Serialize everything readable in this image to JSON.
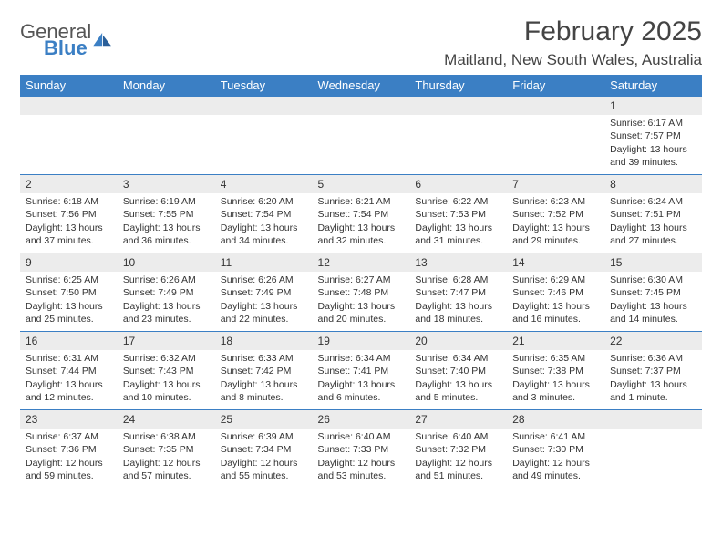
{
  "brand": {
    "word1": "General",
    "word2": "Blue"
  },
  "title": "February 2025",
  "location": "Maitland, New South Wales, Australia",
  "weekdays": [
    "Sunday",
    "Monday",
    "Tuesday",
    "Wednesday",
    "Thursday",
    "Friday",
    "Saturday"
  ],
  "colors": {
    "header_bg": "#3b7fc4",
    "header_fg": "#ffffff",
    "daynum_bg": "#ececec",
    "border": "#3b7fc4",
    "text": "#333333"
  },
  "weeks": [
    [
      {
        "blank": true
      },
      {
        "blank": true
      },
      {
        "blank": true
      },
      {
        "blank": true
      },
      {
        "blank": true
      },
      {
        "blank": true
      },
      {
        "day": "1",
        "sunrise": "Sunrise: 6:17 AM",
        "sunset": "Sunset: 7:57 PM",
        "daylight1": "Daylight: 13 hours",
        "daylight2": "and 39 minutes."
      }
    ],
    [
      {
        "day": "2",
        "sunrise": "Sunrise: 6:18 AM",
        "sunset": "Sunset: 7:56 PM",
        "daylight1": "Daylight: 13 hours",
        "daylight2": "and 37 minutes."
      },
      {
        "day": "3",
        "sunrise": "Sunrise: 6:19 AM",
        "sunset": "Sunset: 7:55 PM",
        "daylight1": "Daylight: 13 hours",
        "daylight2": "and 36 minutes."
      },
      {
        "day": "4",
        "sunrise": "Sunrise: 6:20 AM",
        "sunset": "Sunset: 7:54 PM",
        "daylight1": "Daylight: 13 hours",
        "daylight2": "and 34 minutes."
      },
      {
        "day": "5",
        "sunrise": "Sunrise: 6:21 AM",
        "sunset": "Sunset: 7:54 PM",
        "daylight1": "Daylight: 13 hours",
        "daylight2": "and 32 minutes."
      },
      {
        "day": "6",
        "sunrise": "Sunrise: 6:22 AM",
        "sunset": "Sunset: 7:53 PM",
        "daylight1": "Daylight: 13 hours",
        "daylight2": "and 31 minutes."
      },
      {
        "day": "7",
        "sunrise": "Sunrise: 6:23 AM",
        "sunset": "Sunset: 7:52 PM",
        "daylight1": "Daylight: 13 hours",
        "daylight2": "and 29 minutes."
      },
      {
        "day": "8",
        "sunrise": "Sunrise: 6:24 AM",
        "sunset": "Sunset: 7:51 PM",
        "daylight1": "Daylight: 13 hours",
        "daylight2": "and 27 minutes."
      }
    ],
    [
      {
        "day": "9",
        "sunrise": "Sunrise: 6:25 AM",
        "sunset": "Sunset: 7:50 PM",
        "daylight1": "Daylight: 13 hours",
        "daylight2": "and 25 minutes."
      },
      {
        "day": "10",
        "sunrise": "Sunrise: 6:26 AM",
        "sunset": "Sunset: 7:49 PM",
        "daylight1": "Daylight: 13 hours",
        "daylight2": "and 23 minutes."
      },
      {
        "day": "11",
        "sunrise": "Sunrise: 6:26 AM",
        "sunset": "Sunset: 7:49 PM",
        "daylight1": "Daylight: 13 hours",
        "daylight2": "and 22 minutes."
      },
      {
        "day": "12",
        "sunrise": "Sunrise: 6:27 AM",
        "sunset": "Sunset: 7:48 PM",
        "daylight1": "Daylight: 13 hours",
        "daylight2": "and 20 minutes."
      },
      {
        "day": "13",
        "sunrise": "Sunrise: 6:28 AM",
        "sunset": "Sunset: 7:47 PM",
        "daylight1": "Daylight: 13 hours",
        "daylight2": "and 18 minutes."
      },
      {
        "day": "14",
        "sunrise": "Sunrise: 6:29 AM",
        "sunset": "Sunset: 7:46 PM",
        "daylight1": "Daylight: 13 hours",
        "daylight2": "and 16 minutes."
      },
      {
        "day": "15",
        "sunrise": "Sunrise: 6:30 AM",
        "sunset": "Sunset: 7:45 PM",
        "daylight1": "Daylight: 13 hours",
        "daylight2": "and 14 minutes."
      }
    ],
    [
      {
        "day": "16",
        "sunrise": "Sunrise: 6:31 AM",
        "sunset": "Sunset: 7:44 PM",
        "daylight1": "Daylight: 13 hours",
        "daylight2": "and 12 minutes."
      },
      {
        "day": "17",
        "sunrise": "Sunrise: 6:32 AM",
        "sunset": "Sunset: 7:43 PM",
        "daylight1": "Daylight: 13 hours",
        "daylight2": "and 10 minutes."
      },
      {
        "day": "18",
        "sunrise": "Sunrise: 6:33 AM",
        "sunset": "Sunset: 7:42 PM",
        "daylight1": "Daylight: 13 hours",
        "daylight2": "and 8 minutes."
      },
      {
        "day": "19",
        "sunrise": "Sunrise: 6:34 AM",
        "sunset": "Sunset: 7:41 PM",
        "daylight1": "Daylight: 13 hours",
        "daylight2": "and 6 minutes."
      },
      {
        "day": "20",
        "sunrise": "Sunrise: 6:34 AM",
        "sunset": "Sunset: 7:40 PM",
        "daylight1": "Daylight: 13 hours",
        "daylight2": "and 5 minutes."
      },
      {
        "day": "21",
        "sunrise": "Sunrise: 6:35 AM",
        "sunset": "Sunset: 7:38 PM",
        "daylight1": "Daylight: 13 hours",
        "daylight2": "and 3 minutes."
      },
      {
        "day": "22",
        "sunrise": "Sunrise: 6:36 AM",
        "sunset": "Sunset: 7:37 PM",
        "daylight1": "Daylight: 13 hours",
        "daylight2": "and 1 minute."
      }
    ],
    [
      {
        "day": "23",
        "sunrise": "Sunrise: 6:37 AM",
        "sunset": "Sunset: 7:36 PM",
        "daylight1": "Daylight: 12 hours",
        "daylight2": "and 59 minutes."
      },
      {
        "day": "24",
        "sunrise": "Sunrise: 6:38 AM",
        "sunset": "Sunset: 7:35 PM",
        "daylight1": "Daylight: 12 hours",
        "daylight2": "and 57 minutes."
      },
      {
        "day": "25",
        "sunrise": "Sunrise: 6:39 AM",
        "sunset": "Sunset: 7:34 PM",
        "daylight1": "Daylight: 12 hours",
        "daylight2": "and 55 minutes."
      },
      {
        "day": "26",
        "sunrise": "Sunrise: 6:40 AM",
        "sunset": "Sunset: 7:33 PM",
        "daylight1": "Daylight: 12 hours",
        "daylight2": "and 53 minutes."
      },
      {
        "day": "27",
        "sunrise": "Sunrise: 6:40 AM",
        "sunset": "Sunset: 7:32 PM",
        "daylight1": "Daylight: 12 hours",
        "daylight2": "and 51 minutes."
      },
      {
        "day": "28",
        "sunrise": "Sunrise: 6:41 AM",
        "sunset": "Sunset: 7:30 PM",
        "daylight1": "Daylight: 12 hours",
        "daylight2": "and 49 minutes."
      },
      {
        "blank": true
      }
    ]
  ]
}
